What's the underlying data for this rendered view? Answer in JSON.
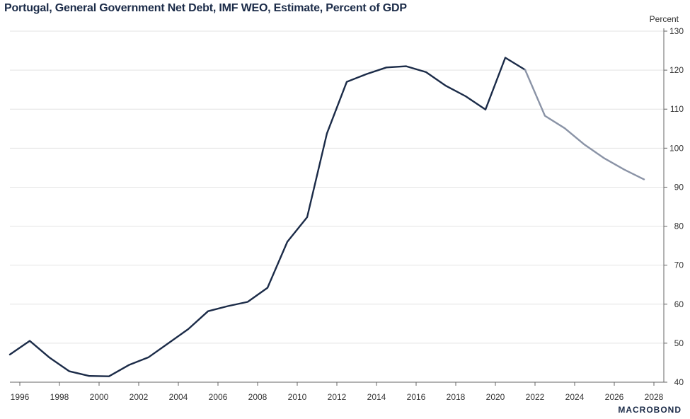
{
  "chart_data": {
    "type": "line",
    "title": "Portugal, General Government Net Debt, IMF WEO, Estimate, Percent of GDP",
    "ylabel": "Percent",
    "xlabel": "",
    "ylim": [
      40,
      130
    ],
    "yticks": [
      40,
      50,
      60,
      70,
      80,
      90,
      100,
      110,
      120,
      130
    ],
    "xlim": [
      1995.5,
      2028.5
    ],
    "xticks": [
      "1996",
      "1998",
      "2000",
      "2002",
      "2004",
      "2006",
      "2008",
      "2010",
      "2012",
      "2014",
      "2016",
      "2018",
      "2020",
      "2022",
      "2024",
      "2026",
      "2028"
    ],
    "grid": true,
    "series": [
      {
        "color": "#1b2b48",
        "x": [
          1995.5,
          1996.5,
          1997.5,
          1998.5,
          1999.5,
          2000.5,
          2001.5,
          2002.5,
          2003.5,
          2004.5,
          2005.5,
          2006.5,
          2007.5,
          2008.5,
          2009.5,
          2010.5,
          2011.5,
          2012.5,
          2013.5,
          2014.5,
          2015.5,
          2016.5,
          2017.5,
          2018.5,
          2019.5,
          2020.5,
          2021.5
        ],
        "values": [
          47.1,
          50.6,
          46.3,
          42.8,
          41.6,
          41.5,
          44.4,
          46.4,
          50.0,
          53.6,
          58.2,
          59.5,
          60.6,
          64.2,
          76.0,
          82.3,
          103.8,
          117.0,
          119.0,
          120.7,
          121.0,
          119.5,
          116.0,
          113.3,
          109.9,
          123.2,
          120.1
        ]
      },
      {
        "color": "#8a93a6",
        "x": [
          2021.5,
          2022.5,
          2023.5,
          2024.5,
          2025.5,
          2026.5,
          2027.5
        ],
        "values": [
          120.1,
          108.3,
          105.1,
          100.9,
          97.4,
          94.5,
          92.0
        ]
      }
    ]
  },
  "brand": "MACROBOND"
}
